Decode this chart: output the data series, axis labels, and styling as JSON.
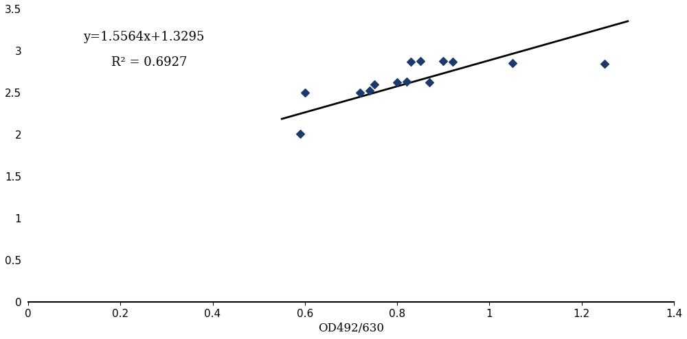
{
  "x_data": [
    0.59,
    0.6,
    0.72,
    0.74,
    0.75,
    0.8,
    0.82,
    0.83,
    0.85,
    0.87,
    0.9,
    0.92,
    1.05,
    1.25
  ],
  "y_data": [
    2.01,
    2.5,
    2.5,
    2.52,
    2.6,
    2.62,
    2.63,
    2.87,
    2.88,
    2.62,
    2.88,
    2.87,
    2.85,
    2.84
  ],
  "slope": 1.5564,
  "intercept": 1.3295,
  "r_squared": 0.6927,
  "equation_text": "y=1.5564x+1.3295",
  "r2_text": "R² = 0.6927",
  "xlabel": "OD492/630",
  "xlim": [
    0,
    1.4
  ],
  "ylim": [
    0,
    3.5
  ],
  "line_x_start": 0.55,
  "line_x_end": 1.3,
  "xticks": [
    0,
    0.2,
    0.4,
    0.6,
    0.8,
    1.0,
    1.2,
    1.4
  ],
  "yticks": [
    0,
    0.5,
    1.0,
    1.5,
    2.0,
    2.5,
    3.0,
    3.5
  ],
  "marker_color": "#1a3a6b",
  "line_color": "#000000",
  "marker_size": 6,
  "line_width": 2.0,
  "annotation_fontsize": 13,
  "axis_fontsize": 12,
  "tick_fontsize": 11
}
